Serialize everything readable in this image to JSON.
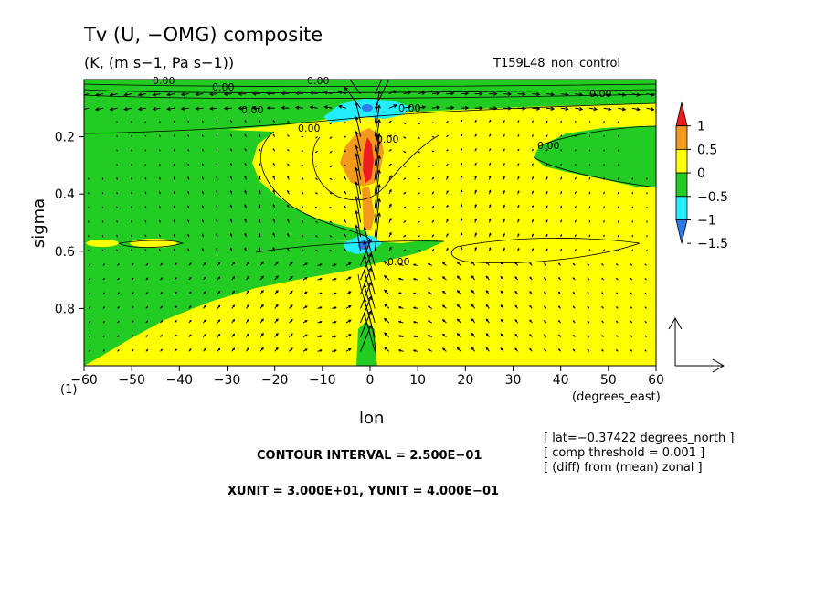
{
  "chart_data": {
    "type": "heatmap",
    "title": "Tv (U, −OMG) composite",
    "subtitle": "(K, (m s−1, Pa s−1))",
    "run_name": "T159L48_non_control",
    "xlabel": "lon",
    "xunit_label": "(degrees_east)",
    "ylabel": "sigma",
    "corner_label": "(1)",
    "xlim": [
      -60,
      60
    ],
    "ylim": [
      0.0,
      1.0
    ],
    "y_inverted": true,
    "x_ticks": [
      -60,
      -50,
      -40,
      -30,
      -20,
      -10,
      0,
      10,
      20,
      30,
      40,
      50,
      60
    ],
    "x_tick_labels": [
      "−60",
      "−50",
      "−40",
      "−30",
      "−20",
      "−10",
      "0",
      "10",
      "20",
      "30",
      "40",
      "50",
      "60"
    ],
    "y_ticks": [
      0.2,
      0.4,
      0.6,
      0.8
    ],
    "y_tick_labels": [
      "0.2",
      "0.4",
      "0.6",
      "0.8"
    ],
    "colorbar": {
      "labels": [
        "1",
        "0.5",
        "0",
        "−0.5",
        "−1",
        "−1.5"
      ],
      "levels": [
        1.0,
        0.5,
        0.0,
        -0.5,
        -1.0,
        -1.5
      ],
      "colors": [
        "#ee1c1c",
        "#f39a1c",
        "#ffff00",
        "#22cc22",
        "#22eeff",
        "#2b7bee"
      ]
    },
    "contour_labels": [
      "0.00",
      "0.00",
      "0.00",
      "0.00",
      "0.00",
      "0.00",
      "0.00",
      "0.00",
      "0.00",
      "0.00"
    ],
    "contour_interval_text": "CONTOUR INTERVAL = 2.500E−01",
    "unit_vector_text": "XUNIT = 3.000E+01, YUNIT = 4.000E−01",
    "info_lines": [
      "[ lat=−0.37422 degrees_north ]",
      "[ comp threshold = 0.001 ]",
      "[ (diff) from (mean) zonal ]"
    ],
    "background_color": "#ffff00",
    "grid": false
  }
}
